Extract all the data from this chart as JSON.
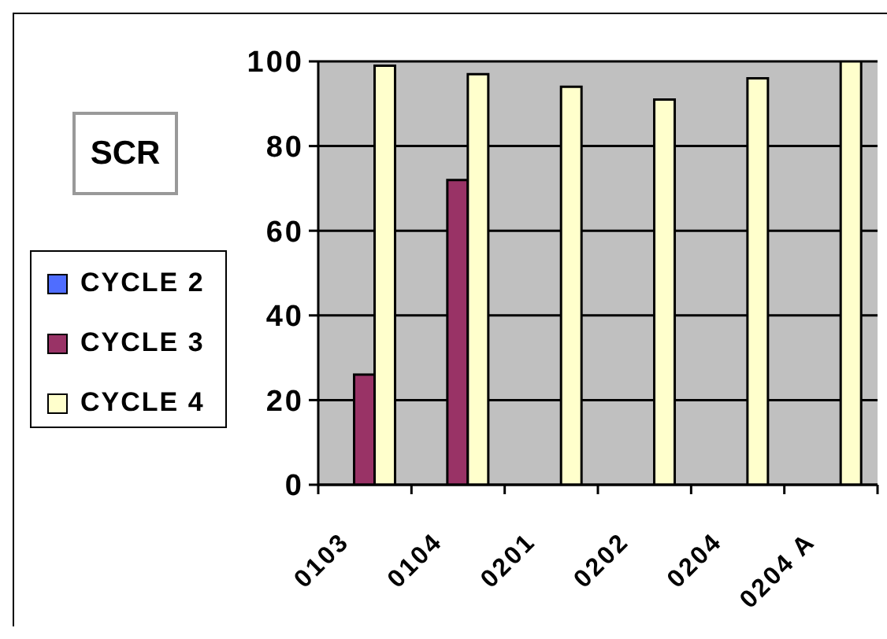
{
  "chart_data": {
    "type": "bar",
    "title": "SCR",
    "categories": [
      "0103",
      "0104",
      "0201",
      "0202",
      "0204",
      "0204 A"
    ],
    "series": [
      {
        "name": "CYCLE 2",
        "color": "#4f6dff",
        "values": [
          null,
          null,
          null,
          null,
          null,
          null
        ]
      },
      {
        "name": "CYCLE 3",
        "color": "#993366",
        "values": [
          26,
          72,
          null,
          null,
          null,
          null
        ]
      },
      {
        "name": "CYCLE 4",
        "color": "#ffffcc",
        "values": [
          99,
          97,
          94,
          91,
          96,
          100
        ]
      }
    ],
    "ylim": [
      0,
      100
    ],
    "yticks": [
      0,
      20,
      40,
      60,
      80,
      100
    ],
    "grid": "y",
    "legend": "left"
  }
}
